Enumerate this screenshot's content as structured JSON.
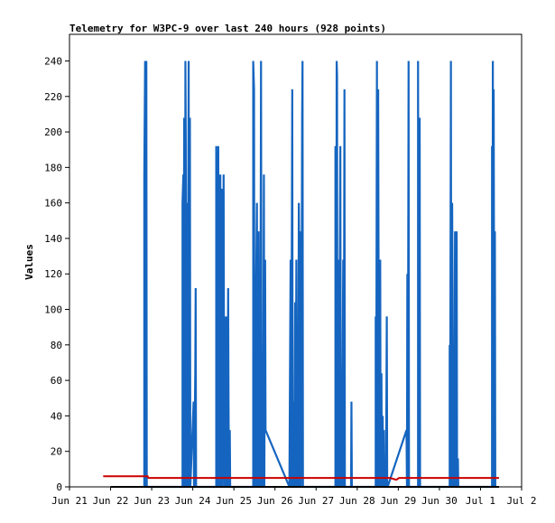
{
  "chart_data": {
    "type": "line",
    "title": "Telemetry for W3PC-9 over last 240 hours (928 points)",
    "xlabel": "",
    "ylabel": "Values",
    "ylim": [
      0,
      255
    ],
    "yticks": [
      0,
      20,
      40,
      60,
      80,
      100,
      120,
      140,
      160,
      180,
      200,
      220,
      240
    ],
    "xlim": [
      0,
      11.0
    ],
    "xticks": [
      {
        "x": 0,
        "label": "Jun 21"
      },
      {
        "x": 1,
        "label": "Jun 22"
      },
      {
        "x": 2,
        "label": "Jun 23"
      },
      {
        "x": 3,
        "label": "Jun 24"
      },
      {
        "x": 4,
        "label": "Jun 25"
      },
      {
        "x": 5,
        "label": "Jun 26"
      },
      {
        "x": 6,
        "label": "Jun 27"
      },
      {
        "x": 7,
        "label": "Jun 28"
      },
      {
        "x": 8,
        "label": "Jun 29"
      },
      {
        "x": 9,
        "label": "Jun 30"
      },
      {
        "x": 10,
        "label": "Jul 1"
      },
      {
        "x": 11,
        "label": "Jul 2"
      }
    ],
    "grid": false,
    "series": [
      {
        "color": "#1565c0",
        "points": [
          [
            1.82,
            0
          ],
          [
            1.82,
            176
          ],
          [
            1.84,
            240
          ],
          [
            1.86,
            0
          ],
          [
            1.87,
            240
          ],
          [
            1.88,
            0
          ],
          [
            2.75,
            0
          ],
          [
            2.75,
            160
          ],
          [
            2.77,
            176
          ],
          [
            2.78,
            0
          ],
          [
            2.79,
            208
          ],
          [
            2.8,
            128
          ],
          [
            2.81,
            0
          ],
          [
            2.82,
            240
          ],
          [
            2.83,
            192
          ],
          [
            2.84,
            0
          ],
          [
            2.86,
            160
          ],
          [
            2.87,
            0
          ],
          [
            2.9,
            240
          ],
          [
            2.91,
            0
          ],
          [
            2.93,
            208
          ],
          [
            2.94,
            0
          ],
          [
            3.02,
            48
          ],
          [
            3.03,
            0
          ],
          [
            3.06,
            64
          ],
          [
            3.07,
            112
          ],
          [
            3.08,
            0
          ],
          [
            3.57,
            0
          ],
          [
            3.57,
            192
          ],
          [
            3.59,
            96
          ],
          [
            3.6,
            0
          ],
          [
            3.62,
            192
          ],
          [
            3.63,
            80
          ],
          [
            3.64,
            0
          ],
          [
            3.66,
            160
          ],
          [
            3.67,
            176
          ],
          [
            3.68,
            0
          ],
          [
            3.7,
            168
          ],
          [
            3.71,
            48
          ],
          [
            3.72,
            0
          ],
          [
            3.75,
            176
          ],
          [
            3.76,
            64
          ],
          [
            3.77,
            0
          ],
          [
            3.79,
            96
          ],
          [
            3.8,
            0
          ],
          [
            3.82,
            96
          ],
          [
            3.83,
            40
          ],
          [
            3.84,
            0
          ],
          [
            3.86,
            112
          ],
          [
            3.87,
            48
          ],
          [
            3.88,
            0
          ],
          [
            3.9,
            32
          ],
          [
            3.91,
            0
          ],
          [
            4.47,
            0
          ],
          [
            4.47,
            240
          ],
          [
            4.49,
            224
          ],
          [
            4.5,
            0
          ],
          [
            4.52,
            80
          ],
          [
            4.53,
            0
          ],
          [
            4.54,
            112
          ],
          [
            4.56,
            160
          ],
          [
            4.57,
            0
          ],
          [
            4.58,
            104
          ],
          [
            4.6,
            144
          ],
          [
            4.61,
            0
          ],
          [
            4.63,
            64
          ],
          [
            4.64,
            0
          ],
          [
            4.66,
            240
          ],
          [
            4.67,
            72
          ],
          [
            4.68,
            0
          ],
          [
            4.7,
            48
          ],
          [
            4.71,
            0
          ],
          [
            4.73,
            176
          ],
          [
            4.74,
            0
          ],
          [
            4.76,
            128
          ],
          [
            4.77,
            32
          ],
          [
            5.35,
            0
          ],
          [
            5.38,
            128
          ],
          [
            5.39,
            0
          ],
          [
            5.41,
            144
          ],
          [
            5.42,
            224
          ],
          [
            5.43,
            0
          ],
          [
            5.44,
            48
          ],
          [
            5.46,
            32
          ],
          [
            5.47,
            0
          ],
          [
            5.49,
            104
          ],
          [
            5.5,
            0
          ],
          [
            5.52,
            128
          ],
          [
            5.53,
            0
          ],
          [
            5.55,
            24
          ],
          [
            5.56,
            0
          ],
          [
            5.58,
            160
          ],
          [
            5.59,
            128
          ],
          [
            5.6,
            0
          ],
          [
            5.62,
            144
          ],
          [
            5.63,
            0
          ],
          [
            5.65,
            112
          ],
          [
            5.66,
            208
          ],
          [
            5.67,
            240
          ],
          [
            5.68,
            0
          ],
          [
            6.47,
            0
          ],
          [
            6.47,
            192
          ],
          [
            6.48,
            128
          ],
          [
            6.49,
            0
          ],
          [
            6.5,
            240
          ],
          [
            6.51,
            232
          ],
          [
            6.52,
            0
          ],
          [
            6.54,
            128
          ],
          [
            6.55,
            64
          ],
          [
            6.56,
            0
          ],
          [
            6.58,
            136
          ],
          [
            6.59,
            192
          ],
          [
            6.6,
            0
          ],
          [
            6.62,
            48
          ],
          [
            6.63,
            0
          ],
          [
            6.66,
            128
          ],
          [
            6.67,
            0
          ],
          [
            6.69,
            224
          ],
          [
            6.7,
            0
          ],
          [
            6.85,
            0
          ],
          [
            6.86,
            48
          ],
          [
            6.87,
            0
          ],
          [
            7.45,
            0
          ],
          [
            7.45,
            96
          ],
          [
            7.46,
            0
          ],
          [
            7.48,
            240
          ],
          [
            7.49,
            0
          ],
          [
            7.51,
            224
          ],
          [
            7.52,
            120
          ],
          [
            7.53,
            0
          ],
          [
            7.55,
            112
          ],
          [
            7.56,
            128
          ],
          [
            7.57,
            0
          ],
          [
            7.59,
            64
          ],
          [
            7.6,
            0
          ],
          [
            7.62,
            40
          ],
          [
            7.63,
            0
          ],
          [
            7.65,
            32
          ],
          [
            7.66,
            0
          ],
          [
            7.7,
            0
          ],
          [
            7.72,
            96
          ],
          [
            7.73,
            0
          ],
          [
            7.74,
            0
          ],
          [
            8.2,
            32
          ],
          [
            8.21,
            0
          ],
          [
            8.22,
            120
          ],
          [
            8.23,
            0
          ],
          [
            8.25,
            240
          ],
          [
            8.26,
            0
          ],
          [
            8.48,
            0
          ],
          [
            8.48,
            240
          ],
          [
            8.5,
            0
          ],
          [
            8.52,
            208
          ],
          [
            8.53,
            0
          ],
          [
            9.25,
            0
          ],
          [
            9.25,
            80
          ],
          [
            9.26,
            0
          ],
          [
            9.28,
            240
          ],
          [
            9.29,
            0
          ],
          [
            9.31,
            160
          ],
          [
            9.32,
            112
          ],
          [
            9.33,
            0
          ],
          [
            9.35,
            48
          ],
          [
            9.36,
            0
          ],
          [
            9.38,
            144
          ],
          [
            9.39,
            16
          ],
          [
            9.4,
            0
          ],
          [
            9.42,
            144
          ],
          [
            9.43,
            0
          ],
          [
            9.45,
            16
          ],
          [
            9.46,
            0
          ],
          [
            10.28,
            0
          ],
          [
            10.28,
            192
          ],
          [
            10.29,
            0
          ],
          [
            10.3,
            240
          ],
          [
            10.31,
            0
          ],
          [
            10.32,
            224
          ],
          [
            10.33,
            112
          ],
          [
            10.34,
            0
          ],
          [
            10.35,
            144
          ],
          [
            10.36,
            0
          ]
        ]
      },
      {
        "color": "#cc0000",
        "points": [
          [
            0.82,
            6
          ],
          [
            1.9,
            6
          ],
          [
            1.92,
            5
          ],
          [
            2.05,
            5
          ],
          [
            7.35,
            5
          ],
          [
            7.8,
            5
          ],
          [
            7.95,
            4
          ],
          [
            8.02,
            5
          ],
          [
            10.45,
            5
          ]
        ]
      },
      {
        "color": "#000000",
        "points": [
          [
            1.0,
            0
          ],
          [
            10.45,
            0
          ]
        ]
      }
    ]
  }
}
